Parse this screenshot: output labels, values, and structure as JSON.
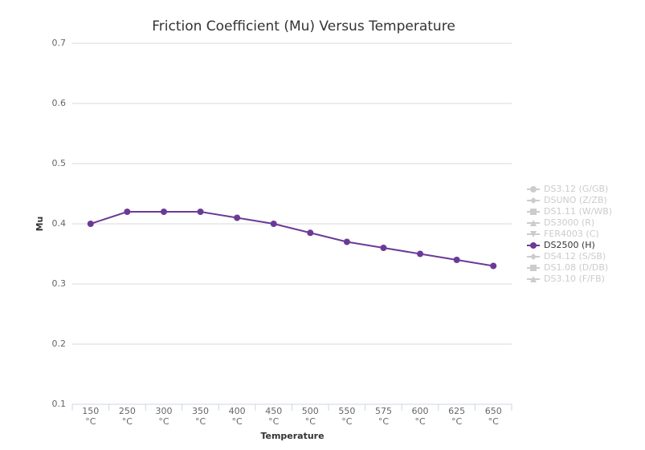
{
  "chart_data": {
    "type": "line",
    "title": "Friction Coefficient (Mu) Versus Temperature",
    "x_label": "Temperature",
    "y_label": "Mu",
    "categories": [
      "150 °C",
      "250 °C",
      "300 °C",
      "350 °C",
      "400 °C",
      "450 °C",
      "500 °C",
      "550 °C",
      "575 °C",
      "600 °C",
      "625 °C",
      "650 °C"
    ],
    "ylim": [
      0.1,
      0.7
    ],
    "yticks": [
      0.1,
      0.2,
      0.3,
      0.4,
      0.5,
      0.6,
      0.7
    ],
    "grid": true,
    "legend": "right",
    "hidden_color": "#cccccc",
    "series": [
      {
        "name": "DS3.12 (G/GB)",
        "marker": "circle",
        "visible": false
      },
      {
        "name": "DSUNO (Z/ZB)",
        "marker": "diamond",
        "visible": false
      },
      {
        "name": "DS1.11 (W/WB)",
        "marker": "square",
        "visible": false
      },
      {
        "name": "DS3000 (R)",
        "marker": "triangle",
        "visible": false
      },
      {
        "name": "FER4003 (C)",
        "marker": "triangle-down",
        "visible": false
      },
      {
        "name": "DS2500 (H)",
        "marker": "circle",
        "visible": true,
        "color": "#6b3a96",
        "values": [
          0.4,
          0.42,
          0.42,
          0.42,
          0.41,
          0.4,
          0.385,
          0.37,
          0.36,
          0.35,
          0.34,
          0.33
        ]
      },
      {
        "name": "DS4.12 (S/SB)",
        "marker": "diamond",
        "visible": false
      },
      {
        "name": "DS1.08 (D/DB)",
        "marker": "square",
        "visible": false
      },
      {
        "name": "DS3.10 (F/FB)",
        "marker": "triangle",
        "visible": false
      }
    ]
  }
}
